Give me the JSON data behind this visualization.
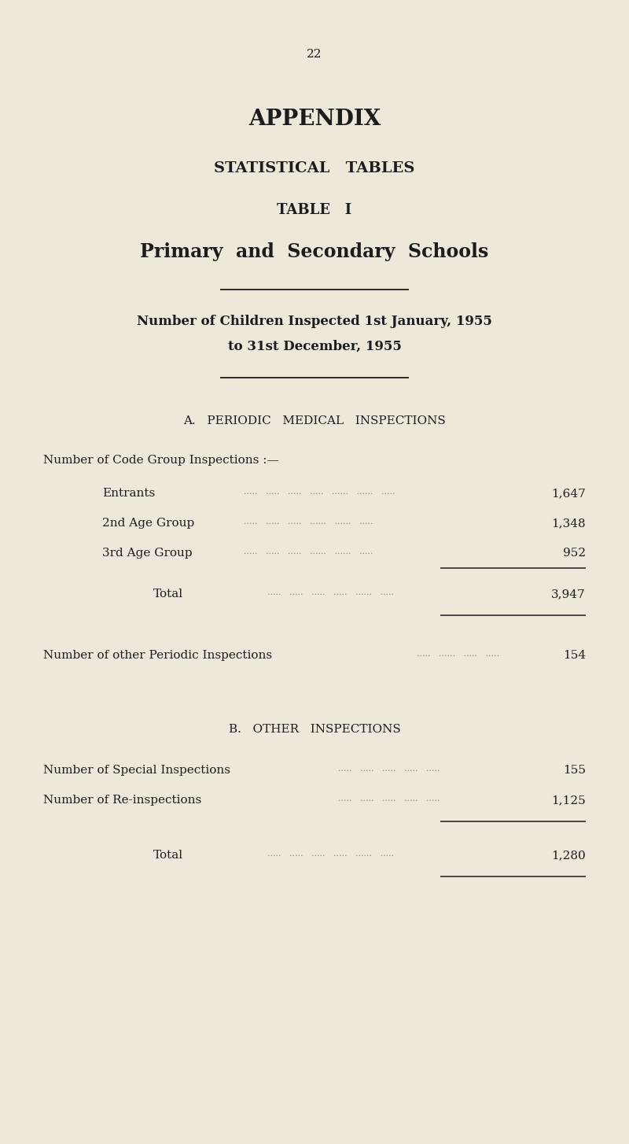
{
  "background_color": "#ede8d9",
  "text_color": "#1c1c1c",
  "page_number": "22",
  "title1": "APPENDIX",
  "title2": "STATISTICAL   TABLES",
  "title3": "TABLE   I",
  "title4": "Primary  and  Secondary  Schools",
  "subtitle1": "Number of Children Inspected 1st January, 1955",
  "subtitle2": "to 31st December, 1955",
  "section_a": "A.   PERIODIC   MEDICAL   INSPECTIONS",
  "code_group_label": "Number of Code Group Inspections :—",
  "items_a": [
    {
      "label": "Entrants",
      "dots": ".....   .....   .....   .....   ......   ......   .....",
      "value": "1,647"
    },
    {
      "label": "2nd Age Group",
      "dots": ".....   .....   .....   ......   ......   .....",
      "value": "1,348"
    },
    {
      "label": "3rd Age Group",
      "dots": ".....   .....   .....   ......   ......   .....",
      "value": "952"
    }
  ],
  "total_a_label": "Total",
  "total_a_dots": ".....   .....   .....   .....   ......   .....",
  "total_a_value": "3,947",
  "other_periodic_label": "Number of other Periodic Inspections",
  "other_periodic_dots": ".....   ......   .....   .....",
  "other_periodic_value": "154",
  "section_b": "B.   OTHER   INSPECTIONS",
  "items_b": [
    {
      "label": "Number of Special Inspections",
      "dots": ".....   .....   .....   .....   .....",
      "value": "155"
    },
    {
      "label": "Number of Re-inspections",
      "dots": ".....   .....   .....   .....   .....",
      "value": "1,125"
    }
  ],
  "total_b_label": "Total",
  "total_b_dots": ".....   .....   .....   .....   ......   .....",
  "total_b_value": "1,280",
  "hline_color": "#1c1c1c",
  "dots_color": "#888888",
  "figwidth": 8.0,
  "figheight": 14.54,
  "dpi": 100
}
